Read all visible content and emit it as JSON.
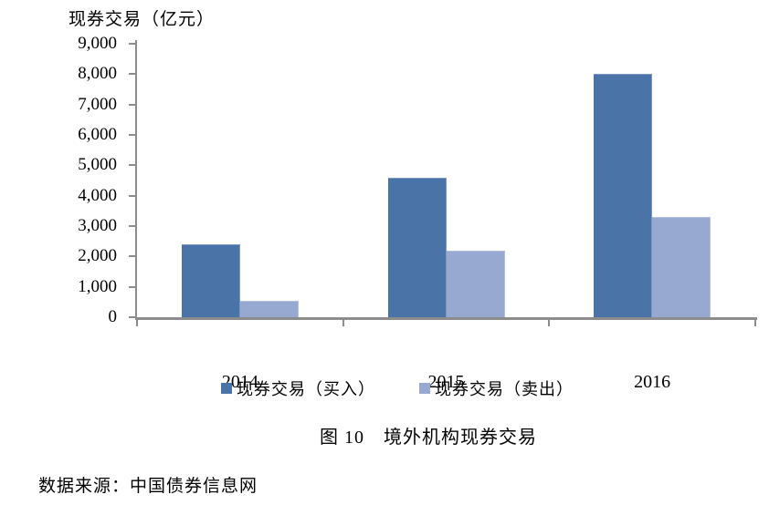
{
  "chart_data": {
    "type": "bar",
    "title": "现券交易（亿元）",
    "categories": [
      "2014",
      "2015",
      "2016"
    ],
    "series": [
      {
        "name": "现券交易（买入）",
        "values": [
          2400,
          4600,
          8000
        ],
        "color": "#4a74a8",
        "border_color": "#7b97c4"
      },
      {
        "name": "现券交易（卖出）",
        "values": [
          550,
          2200,
          3300
        ],
        "color": "#97a9d1",
        "border_color": "#b4c2e2"
      }
    ],
    "xlabel": "",
    "ylabel": "",
    "ylim": [
      0,
      9000
    ],
    "y_tick_step": 1000,
    "y_tick_labels": [
      "0",
      "1,000",
      "2,000",
      "3,000",
      "4,000",
      "5,000",
      "6,000",
      "7,000",
      "8,000",
      "9,000"
    ],
    "grid": false,
    "legend_position": "bottom",
    "axis_color": "#8c8c8c"
  },
  "caption": "图 10　境外机构现券交易",
  "source": "数据来源：中国债券信息网"
}
